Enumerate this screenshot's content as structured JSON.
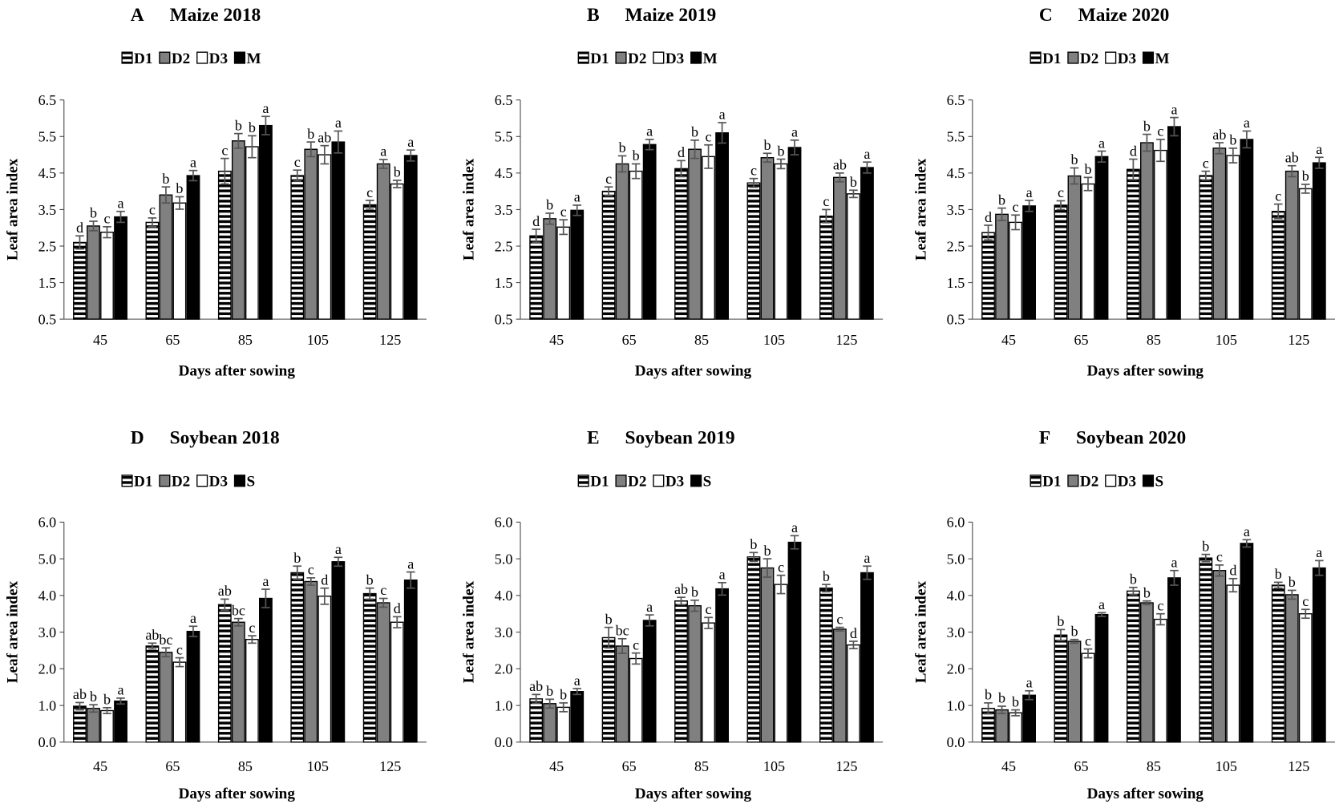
{
  "chart_data": [
    {
      "type": "bar",
      "panel": "A",
      "title": "Maize 2018",
      "xlabel": "Days after sowing",
      "ylabel": "Leaf area index",
      "ylim": [
        0.5,
        6.5
      ],
      "yticks": [
        "0.5",
        "1.5",
        "2.5",
        "3.5",
        "4.5",
        "5.5",
        "6.5"
      ],
      "categories": [
        "45",
        "65",
        "85",
        "105",
        "125"
      ],
      "series": [
        {
          "name": "D1",
          "values": [
            2.6,
            3.15,
            4.55,
            4.43,
            3.63
          ],
          "errors": [
            0.18,
            0.12,
            0.35,
            0.15,
            0.12
          ],
          "letters": [
            "d",
            "c",
            "c",
            "c",
            "c"
          ]
        },
        {
          "name": "D2",
          "values": [
            3.05,
            3.9,
            5.38,
            5.15,
            4.75
          ],
          "errors": [
            0.13,
            0.22,
            0.2,
            0.2,
            0.12
          ],
          "letters": [
            "b",
            "b",
            "b",
            "b",
            "a"
          ]
        },
        {
          "name": "D3",
          "values": [
            2.88,
            3.68,
            5.22,
            5.0,
            4.2
          ],
          "errors": [
            0.15,
            0.17,
            0.3,
            0.25,
            0.1
          ],
          "letters": [
            "c",
            "b",
            "b",
            "ab",
            "b"
          ]
        },
        {
          "name": "M",
          "values": [
            3.3,
            4.43,
            5.8,
            5.35,
            4.98
          ],
          "errors": [
            0.15,
            0.14,
            0.25,
            0.3,
            0.15
          ],
          "letters": [
            "a",
            "a",
            "a",
            "a",
            "a"
          ]
        }
      ]
    },
    {
      "type": "bar",
      "panel": "B",
      "title": "Maize 2019",
      "xlabel": "Days after sowing",
      "ylabel": "Leaf area index",
      "ylim": [
        0.5,
        6.5
      ],
      "yticks": [
        "0.5",
        "1.5",
        "2.5",
        "3.5",
        "4.5",
        "5.5",
        "6.5"
      ],
      "categories": [
        "45",
        "65",
        "85",
        "105",
        "125"
      ],
      "series": [
        {
          "name": "D1",
          "values": [
            2.78,
            4.0,
            4.62,
            4.23,
            3.32
          ],
          "errors": [
            0.18,
            0.12,
            0.22,
            0.12,
            0.18
          ],
          "letters": [
            "d",
            "c",
            "d",
            "c",
            "c"
          ]
        },
        {
          "name": "D2",
          "values": [
            3.25,
            4.75,
            5.15,
            4.92,
            4.38
          ],
          "errors": [
            0.15,
            0.22,
            0.25,
            0.12,
            0.12
          ],
          "letters": [
            "b",
            "b",
            "b",
            "b",
            "ab"
          ]
        },
        {
          "name": "D3",
          "values": [
            3.02,
            4.55,
            4.95,
            4.75,
            3.93
          ],
          "errors": [
            0.2,
            0.2,
            0.32,
            0.13,
            0.1
          ],
          "letters": [
            "c",
            "b",
            "c",
            "b",
            "b"
          ]
        },
        {
          "name": "M",
          "values": [
            3.48,
            5.28,
            5.6,
            5.2,
            4.65
          ],
          "errors": [
            0.14,
            0.14,
            0.28,
            0.2,
            0.15
          ],
          "letters": [
            "a",
            "a",
            "a",
            "a",
            "a"
          ]
        }
      ]
    },
    {
      "type": "bar",
      "panel": "C",
      "title": "Maize 2020",
      "xlabel": "Days after sowing",
      "ylabel": "Leaf area index",
      "ylim": [
        0.5,
        6.5
      ],
      "yticks": [
        "0.5",
        "1.5",
        "2.5",
        "3.5",
        "4.5",
        "5.5",
        "6.5"
      ],
      "categories": [
        "45",
        "65",
        "85",
        "105",
        "125"
      ],
      "series": [
        {
          "name": "D1",
          "values": [
            2.87,
            3.62,
            4.6,
            4.43,
            3.45
          ],
          "errors": [
            0.2,
            0.12,
            0.28,
            0.12,
            0.2
          ],
          "letters": [
            "d",
            "c",
            "d",
            "c",
            "c"
          ]
        },
        {
          "name": "D2",
          "values": [
            3.37,
            4.42,
            5.33,
            5.18,
            4.55
          ],
          "errors": [
            0.17,
            0.22,
            0.23,
            0.15,
            0.15
          ],
          "letters": [
            "b",
            "b",
            "b",
            "ab",
            "ab"
          ]
        },
        {
          "name": "D3",
          "values": [
            3.15,
            4.2,
            5.12,
            4.98,
            4.07
          ],
          "errors": [
            0.2,
            0.18,
            0.3,
            0.2,
            0.12
          ],
          "letters": [
            "c",
            "b",
            "c",
            "b",
            "b"
          ]
        },
        {
          "name": "M",
          "values": [
            3.6,
            4.95,
            5.77,
            5.42,
            4.78
          ],
          "errors": [
            0.15,
            0.15,
            0.25,
            0.23,
            0.15
          ],
          "letters": [
            "a",
            "a",
            "a",
            "a",
            "a"
          ]
        }
      ]
    },
    {
      "type": "bar",
      "panel": "D",
      "title": "Soybean 2018",
      "xlabel": "Days after sowing",
      "ylabel": "Leaf area index",
      "ylim": [
        0.0,
        6.0
      ],
      "yticks": [
        "0.0",
        "1.0",
        "2.0",
        "3.0",
        "4.0",
        "5.0",
        "6.0"
      ],
      "categories": [
        "45",
        "65",
        "85",
        "105",
        "125"
      ],
      "series": [
        {
          "name": "D1",
          "values": [
            0.98,
            2.62,
            3.75,
            4.62,
            4.05
          ],
          "errors": [
            0.1,
            0.08,
            0.15,
            0.18,
            0.15
          ],
          "letters": [
            "ab",
            "ab",
            "ab",
            "b",
            "b"
          ]
        },
        {
          "name": "D2",
          "values": [
            0.92,
            2.45,
            3.27,
            4.38,
            3.8
          ],
          "errors": [
            0.1,
            0.12,
            0.1,
            0.1,
            0.12
          ],
          "letters": [
            "b",
            "bc",
            "bc",
            "c",
            "c"
          ]
        },
        {
          "name": "D3",
          "values": [
            0.86,
            2.18,
            2.8,
            3.98,
            3.27
          ],
          "errors": [
            0.08,
            0.12,
            0.1,
            0.22,
            0.15
          ],
          "letters": [
            "b",
            "c",
            "c",
            "d",
            "d"
          ]
        },
        {
          "name": "S",
          "values": [
            1.12,
            3.02,
            3.92,
            4.92,
            4.42
          ],
          "errors": [
            0.08,
            0.14,
            0.25,
            0.12,
            0.22
          ],
          "letters": [
            "a",
            "a",
            "a",
            "a",
            "a"
          ]
        }
      ]
    },
    {
      "type": "bar",
      "panel": "E",
      "title": "Soybean 2019",
      "xlabel": "Days after sowing",
      "ylabel": "Leaf area index",
      "ylim": [
        0.0,
        6.0
      ],
      "yticks": [
        "0.0",
        "1.0",
        "2.0",
        "3.0",
        "4.0",
        "5.0",
        "6.0"
      ],
      "categories": [
        "45",
        "65",
        "85",
        "105",
        "125"
      ],
      "series": [
        {
          "name": "D1",
          "values": [
            1.18,
            2.85,
            3.85,
            5.05,
            4.2
          ],
          "errors": [
            0.12,
            0.28,
            0.1,
            0.12,
            0.1
          ],
          "letters": [
            "ab",
            "b",
            "ab",
            "b",
            "b"
          ]
        },
        {
          "name": "D2",
          "values": [
            1.05,
            2.62,
            3.72,
            4.75,
            3.08
          ],
          "errors": [
            0.12,
            0.2,
            0.15,
            0.25,
            0.05
          ],
          "letters": [
            "b",
            "bc",
            "b",
            "b",
            "c"
          ]
        },
        {
          "name": "D3",
          "values": [
            0.95,
            2.28,
            3.25,
            4.3,
            2.65
          ],
          "errors": [
            0.12,
            0.15,
            0.15,
            0.25,
            0.1
          ],
          "letters": [
            "b",
            "c",
            "c",
            "c",
            "d"
          ]
        },
        {
          "name": "S",
          "values": [
            1.38,
            3.32,
            4.18,
            5.45,
            4.62
          ],
          "errors": [
            0.08,
            0.15,
            0.17,
            0.18,
            0.18
          ],
          "letters": [
            "a",
            "a",
            "a",
            "a",
            "a"
          ]
        }
      ]
    },
    {
      "type": "bar",
      "panel": "F",
      "title": "Soybean 2020",
      "xlabel": "Days after sowing",
      "ylabel": "Leaf area index",
      "ylim": [
        0.0,
        6.0
      ],
      "yticks": [
        "0.0",
        "1.0",
        "2.0",
        "3.0",
        "4.0",
        "5.0",
        "6.0"
      ],
      "categories": [
        "45",
        "65",
        "85",
        "105",
        "125"
      ],
      "series": [
        {
          "name": "D1",
          "values": [
            0.92,
            2.92,
            4.12,
            5.02,
            4.28
          ],
          "errors": [
            0.15,
            0.15,
            0.1,
            0.1,
            0.08
          ],
          "letters": [
            "b",
            "b",
            "b",
            "b",
            "b"
          ]
        },
        {
          "name": "D2",
          "values": [
            0.88,
            2.75,
            3.8,
            4.68,
            4.02
          ],
          "errors": [
            0.1,
            0.05,
            0.05,
            0.15,
            0.12
          ],
          "letters": [
            "b",
            "b",
            "b",
            "c",
            "b"
          ]
        },
        {
          "name": "D3",
          "values": [
            0.8,
            2.42,
            3.35,
            4.28,
            3.5
          ],
          "errors": [
            0.08,
            0.12,
            0.15,
            0.18,
            0.12
          ],
          "letters": [
            "b",
            "c",
            "c",
            "d",
            "c"
          ]
        },
        {
          "name": "S",
          "values": [
            1.28,
            3.48,
            4.48,
            5.42,
            4.75
          ],
          "errors": [
            0.12,
            0.05,
            0.2,
            0.1,
            0.2
          ],
          "letters": [
            "a",
            "a",
            "a",
            "a",
            "a"
          ]
        }
      ]
    }
  ]
}
